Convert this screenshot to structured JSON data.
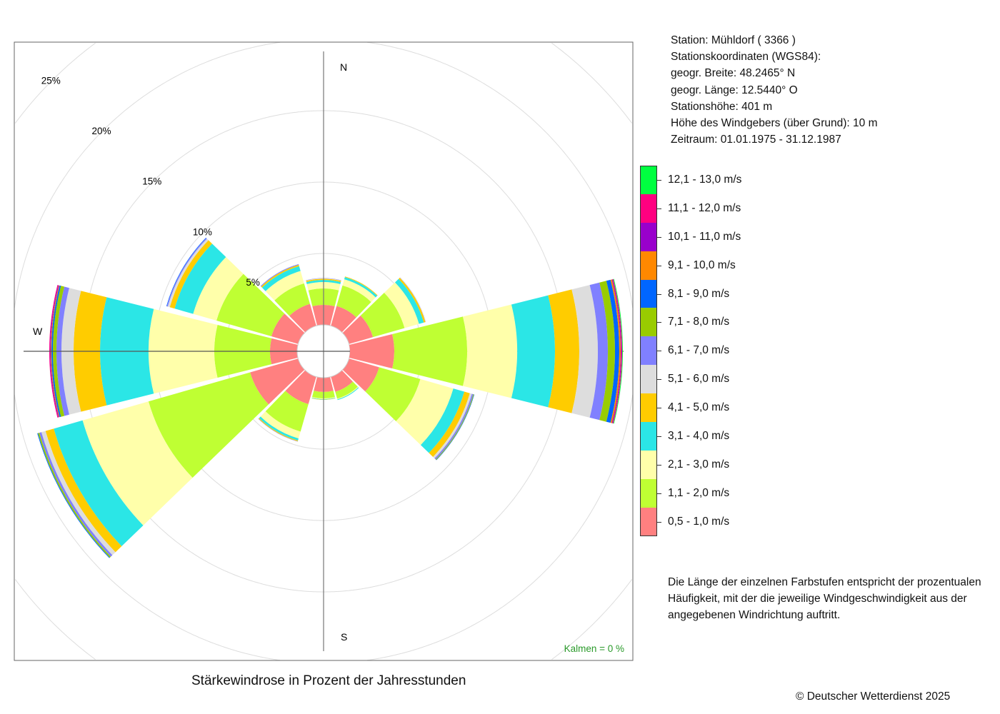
{
  "info": {
    "station": "Station:  Mühldorf  ( 3366 )",
    "coords_title": "Stationskoordinaten (WGS84):",
    "lat": "geogr. Breite: 48.2465° N",
    "lon": "geogr. Länge: 12.5440° O",
    "height": "Stationshöhe: 401 m",
    "anemometer": "Höhe des Windgebers (über Grund): 10 m",
    "period": "Zeitraum: 01.01.1975 - 31.12.1987"
  },
  "note": "Die Länge der einzelnen Farbstufen entspricht der prozentualen Häufigkeit, mit der die jeweilige Windgeschwindigkeit aus der angegebenen Windrichtung auftritt.",
  "copyright": "© Deutscher Wetterdienst  2025",
  "chart_data": {
    "type": "windrose",
    "title": "Stärkewindrose in Prozent der Jahresstunden",
    "calm_label": "Kalmen  =  0 %",
    "compass_labels": {
      "N": "N",
      "S": "S",
      "W": "W"
    },
    "ring_values": [
      5,
      10,
      15,
      20,
      25
    ],
    "ring_labels": [
      "5%",
      "10%",
      "15%",
      "20%",
      "25%"
    ],
    "speed_classes": [
      {
        "label": "0,5 - 1,0 m/s",
        "color": "#FF8080"
      },
      {
        "label": "1,1 - 2,0 m/s",
        "color": "#BFFF33"
      },
      {
        "label": "2,1 - 3,0 m/s",
        "color": "#FFFFAA"
      },
      {
        "label": "3,1 - 4,0 m/s",
        "color": "#2BE6E6"
      },
      {
        "label": "4,1 - 5,0 m/s",
        "color": "#FFCC00"
      },
      {
        "label": "5,1 - 6,0 m/s",
        "color": "#DDDDDD"
      },
      {
        "label": "6,1 - 7,0 m/s",
        "color": "#8080FF"
      },
      {
        "label": "7,1 - 8,0 m/s",
        "color": "#99CC00"
      },
      {
        "label": "8,1 - 9,0 m/s",
        "color": "#0066FF"
      },
      {
        "label": "9,1 - 10,0 m/s",
        "color": "#FF8800"
      },
      {
        "label": "10,1 - 11,0 m/s",
        "color": "#9900CC"
      },
      {
        "label": "11,1 - 12,0 m/s",
        "color": "#FF0080"
      },
      {
        "label": "12,1 - 13,0 m/s",
        "color": "#00FF40"
      }
    ],
    "directions": [
      0,
      30,
      60,
      90,
      120,
      150,
      180,
      210,
      240,
      270,
      300,
      330
    ],
    "series": [
      [
        1.4,
        1.15,
        0.45,
        0.15,
        0.08,
        0.03,
        0.02,
        0,
        0,
        0,
        0,
        0,
        0
      ],
      [
        1.45,
        1.5,
        0.45,
        0.15,
        0.05,
        0,
        0,
        0,
        0,
        0,
        0,
        0,
        0
      ],
      [
        1.75,
        2.3,
        1.05,
        0.35,
        0.12,
        0.02,
        0.01,
        0,
        0,
        0,
        0,
        0,
        0
      ],
      [
        3.1,
        5.1,
        3.5,
        2.65,
        1.7,
        1.3,
        0.7,
        0.5,
        0.3,
        0.1,
        0.05,
        0.05,
        0.05
      ],
      [
        2.2,
        3.0,
        2.4,
        0.8,
        0.4,
        0.15,
        0.1,
        0.05,
        0.03,
        0,
        0,
        0,
        0
      ],
      [
        1.1,
        0.5,
        0.05,
        0.05,
        0,
        0,
        0,
        0,
        0,
        0,
        0,
        0,
        0
      ],
      [
        1.0,
        0.45,
        0.05,
        0.03,
        0.02,
        0,
        0,
        0,
        0,
        0,
        0,
        0,
        0
      ],
      [
        2.0,
        2.0,
        0.5,
        0.15,
        0.06,
        0,
        0.02,
        0,
        0,
        0,
        0,
        0,
        0
      ],
      [
        3.5,
        7.4,
        4.8,
        2.1,
        0.6,
        0.3,
        0.15,
        0.1,
        0.05,
        0,
        0,
        0,
        0
      ],
      [
        1.9,
        3.9,
        4.6,
        3.4,
        1.85,
        0.85,
        0.35,
        0.25,
        0.1,
        0.05,
        0.05,
        0.05,
        0
      ],
      [
        1.95,
        4.0,
        1.7,
        1.35,
        0.35,
        0.15,
        0.07,
        0,
        0.03,
        0,
        0,
        0,
        0
      ],
      [
        1.6,
        1.5,
        0.9,
        0.35,
        0.1,
        0,
        0.05,
        0,
        0,
        0,
        0,
        0,
        0
      ]
    ],
    "units": "percent of annual hours"
  }
}
